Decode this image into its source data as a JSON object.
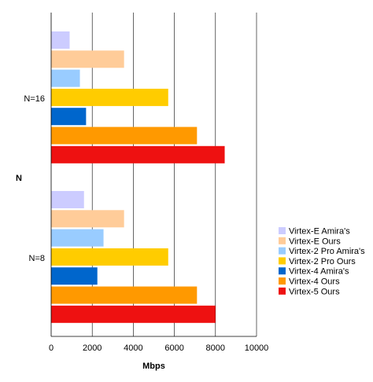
{
  "chart_data": {
    "type": "bar",
    "orientation": "horizontal",
    "xlabel": "Mbps",
    "ylabel": "N",
    "xlim": [
      0,
      10000
    ],
    "xticks": [
      "0",
      "2000",
      "4000",
      "6000",
      "8000",
      "10000"
    ],
    "grid": "vertical",
    "legend_position": "right",
    "categories": [
      "N=16",
      "N=8"
    ],
    "series": [
      {
        "name": "Virtex-E Amira's",
        "color": "#ccccff",
        "values": [
          900,
          1600
        ]
      },
      {
        "name": "Virtex-E Ours",
        "color": "#ffcc99",
        "values": [
          3550,
          3550
        ]
      },
      {
        "name": "Virtex-2 Pro Amira's",
        "color": "#99ccff",
        "values": [
          1400,
          2550
        ]
      },
      {
        "name": "Virtex-2 Pro Ours",
        "color": "#ffcc00",
        "values": [
          5700,
          5700
        ]
      },
      {
        "name": "Virtex-4 Amira's",
        "color": "#0066cc",
        "values": [
          1700,
          2250
        ]
      },
      {
        "name": "Virtex-4 Ours",
        "color": "#ff9900",
        "values": [
          7100,
          7100
        ]
      },
      {
        "name": "Virtex-5 Ours",
        "color": "#ee1111",
        "values": [
          8450,
          8000
        ]
      }
    ]
  }
}
